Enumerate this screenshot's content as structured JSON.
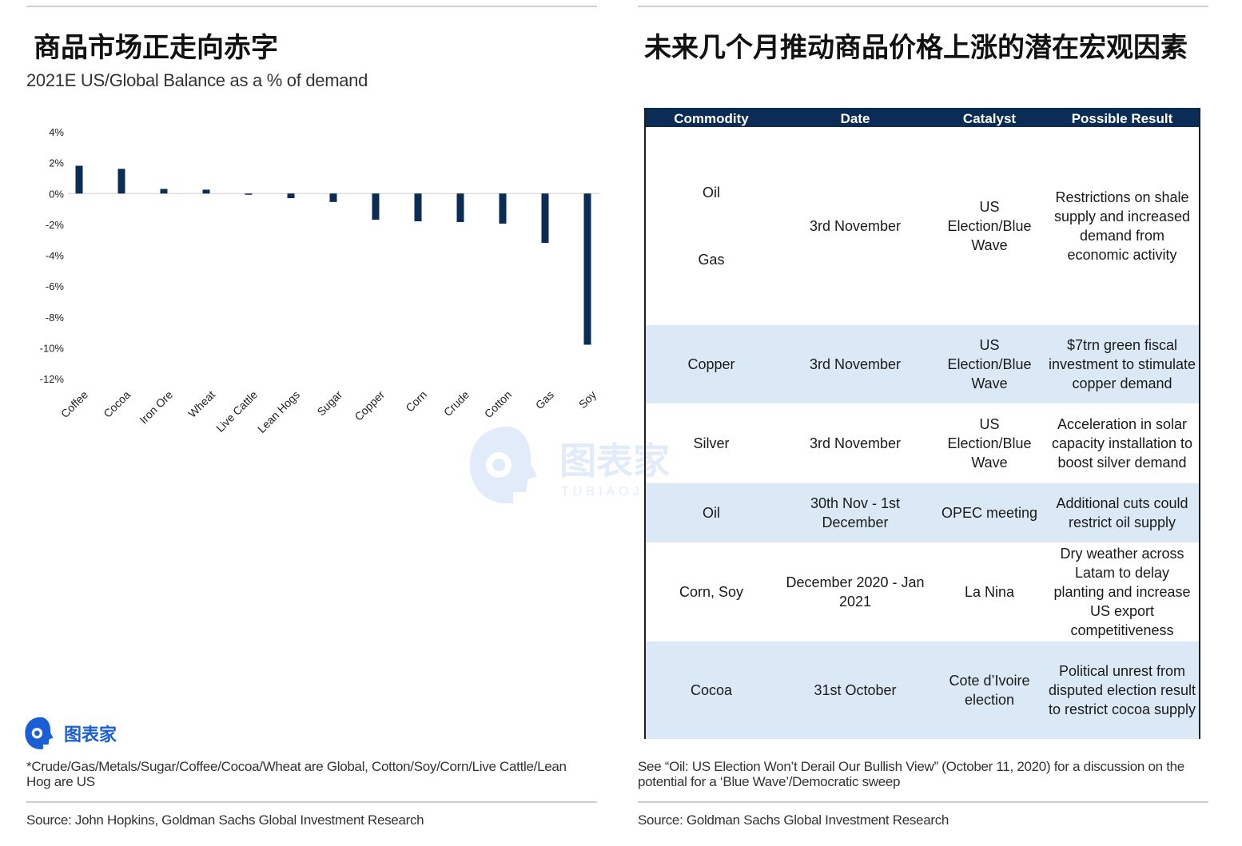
{
  "left": {
    "title": "商品市场正走向赤字",
    "subtitle": "2021E US/Global Balance as a % of demand",
    "footnote": "*Crude/Gas/Metals/Sugar/Coffee/Cocoa/Wheat are Global, Cotton/Soy/Corn/Live Cattle/Lean Hog are US",
    "source": "Source: John Hopkins, Goldman Sachs Global Investment Research"
  },
  "right": {
    "title": "未来几个月推动商品价格上涨的潜在宏观因素",
    "note": "See “Oil: US Election Won’t Derail Our Bullish View” (October 11, 2020) for a discussion on the potential for a ‘Blue Wave’/Democratic sweep",
    "source": "Source: Goldman Sachs Global Investment Research"
  },
  "table": {
    "headers": [
      "Commodity",
      "Date",
      "Catalyst",
      "Possible Result"
    ],
    "rows": [
      {
        "commodity": [
          "Oil",
          "Gas"
        ],
        "date": "3rd November",
        "catalyst": "US Election/Blue Wave",
        "result": "Restrictions on shale supply and increased demand from economic activity"
      },
      {
        "commodity": [
          "Copper"
        ],
        "date": "3rd November",
        "catalyst": "US Election/Blue Wave",
        "result": "$7trn green fiscal investment to stimulate copper demand"
      },
      {
        "commodity": [
          "Silver"
        ],
        "date": "3rd November",
        "catalyst": "US Election/Blue Wave",
        "result": "Acceleration in solar capacity installation to boost silver demand"
      },
      {
        "commodity": [
          "Oil"
        ],
        "date": "30th Nov - 1st December",
        "catalyst": "OPEC meeting",
        "result": "Additional cuts could restrict oil supply"
      },
      {
        "commodity": [
          "Corn, Soy"
        ],
        "date": "December 2020 - Jan 2021",
        "catalyst": "La Nina",
        "result": "Dry weather across Latam to delay planting and increase US export competitiveness"
      },
      {
        "commodity": [
          "Cocoa"
        ],
        "date": "31st October",
        "catalyst": "Cote d’Ivoire election",
        "result": "Political unrest from disputed election result to restrict cocoa supply"
      }
    ]
  },
  "logo": {
    "text": "图表家"
  },
  "watermark": {
    "text": "图表家",
    "subtext": "TUBIAOJIA.COM"
  },
  "chart_data": {
    "type": "bar",
    "categories": [
      "Coffee",
      "Cocoa",
      "Iron Ore",
      "Wheat",
      "Live Cattle",
      "Lean Hogs",
      "Sugar",
      "Copper",
      "Corn",
      "Crude",
      "Cotton",
      "Gas",
      "Soy"
    ],
    "values": [
      1.8,
      1.6,
      0.3,
      0.25,
      -0.05,
      -0.3,
      -0.55,
      -1.7,
      -1.8,
      -1.85,
      -1.95,
      -3.2,
      -9.8
    ],
    "yticks": [
      "4%",
      "2%",
      "0%",
      "-2%",
      "-4%",
      "-6%",
      "-8%",
      "-10%",
      "-12%"
    ],
    "ylim": [
      -12,
      4
    ],
    "bar_color": "#0b2c55",
    "unit": "%"
  }
}
